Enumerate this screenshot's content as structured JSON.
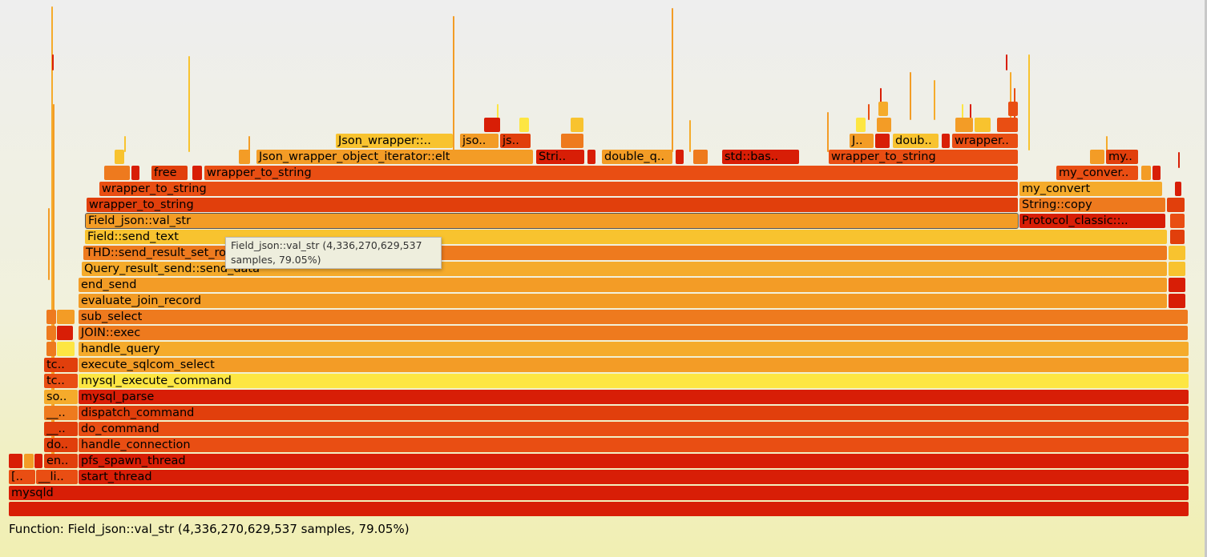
{
  "colors": [
    "#d81e06",
    "#e13f0c",
    "#e94e13",
    "#ee7a1e",
    "#f39c26",
    "#f5ab2b",
    "#f8c32f",
    "#fde642"
  ],
  "tooltip": {
    "line1": "Field_json::val_str (4,336,270,629,537",
    "line2": "samples, 79.05%)"
  },
  "details": {
    "text": "Function: Field_json::val_str (4,336,270,629,537 samples, 79.05%)"
  },
  "frames": [
    {
      "label": "",
      "color": "#d81e06",
      "name": "frame-root"
    },
    {
      "label": "mysqld",
      "color": "#d81e06",
      "name": "frame-mysqld"
    },
    {
      "label": "start_thread",
      "color": "#d81e06",
      "name": "frame-start-thread"
    },
    {
      "label": "[..",
      "color": "#e94e13",
      "name": "frame-unknown"
    },
    {
      "label": "__li..",
      "color": "#e94e13",
      "name": "frame-libc"
    },
    {
      "label": "pfs_spawn_thread",
      "color": "#d81e06",
      "name": "frame-pfs-spawn-thread"
    },
    {
      "label": "en..",
      "color": "#e13f0c",
      "name": "frame-en"
    },
    {
      "label": "",
      "color": "#d81e06",
      "name": "frame-small-a"
    },
    {
      "label": "",
      "color": "#f39c26",
      "name": "frame-small-b"
    },
    {
      "label": "",
      "color": "#d81e06",
      "name": "frame-small-c"
    },
    {
      "label": "handle_connection",
      "color": "#e94e13",
      "name": "frame-handle-connection"
    },
    {
      "label": "do..",
      "color": "#e13f0c",
      "name": "frame-do"
    },
    {
      "label": "do_command",
      "color": "#e94e13",
      "name": "frame-do-command"
    },
    {
      "label": "__..",
      "color": "#e13f0c",
      "name": "frame-underscore-a"
    },
    {
      "label": "dispatch_command",
      "color": "#e13f0c",
      "name": "frame-dispatch-command"
    },
    {
      "label": "__..",
      "color": "#ee7a1e",
      "name": "frame-underscore-b"
    },
    {
      "label": "mysql_parse",
      "color": "#d81e06",
      "name": "frame-mysql-parse"
    },
    {
      "label": "so..",
      "color": "#f5ab2b",
      "name": "frame-so"
    },
    {
      "label": "mysql_execute_command",
      "color": "#fde642",
      "name": "frame-mysql-execute-command"
    },
    {
      "label": "tc..",
      "color": "#e94e13",
      "name": "frame-tc-a"
    },
    {
      "label": "execute_sqlcom_select",
      "color": "#f39c26",
      "name": "frame-execute-sqlcom-select"
    },
    {
      "label": "tc..",
      "color": "#e13f0c",
      "name": "frame-tc-b"
    },
    {
      "label": "handle_query",
      "color": "#f5ab2b",
      "name": "frame-handle-query"
    },
    {
      "label": "",
      "color": "#ee7a1e",
      "name": "frame-small-d"
    },
    {
      "label": "",
      "color": "#fde642",
      "name": "frame-small-e"
    },
    {
      "label": "JOIN::exec",
      "color": "#ee7a1e",
      "name": "frame-join-exec"
    },
    {
      "label": "",
      "color": "#ee7a1e",
      "name": "frame-small-f"
    },
    {
      "label": "",
      "color": "#d81e06",
      "name": "frame-small-g"
    },
    {
      "label": "sub_select",
      "color": "#ee7a1e",
      "name": "frame-sub-select"
    },
    {
      "label": "",
      "color": "#ee7a1e",
      "name": "frame-small-h"
    },
    {
      "label": "",
      "color": "#f39c26",
      "name": "frame-small-i"
    },
    {
      "label": "evaluate_join_record",
      "color": "#f39c26",
      "name": "frame-evaluate-join-record"
    },
    {
      "label": "",
      "color": "#d81e06",
      "name": "frame-small-j"
    },
    {
      "label": "end_send",
      "color": "#f39c26",
      "name": "frame-end-send"
    },
    {
      "label": "",
      "color": "#d81e06",
      "name": "frame-small-k"
    },
    {
      "label": "Query_result_send::send_data",
      "color": "#f5ab2b",
      "name": "frame-query-result-send-data"
    },
    {
      "label": "",
      "color": "#f8c32f",
      "name": "frame-small-l"
    },
    {
      "label": "THD::send_result_set_row",
      "color": "#ee7a1e",
      "name": "frame-thd-send-result-set-row"
    },
    {
      "label": "",
      "color": "#f8c32f",
      "name": "frame-small-m"
    },
    {
      "label": "Field::send_text",
      "color": "#f8c32f",
      "name": "frame-field-send-text"
    },
    {
      "label": "",
      "color": "#e13f0c",
      "name": "frame-small-n"
    },
    {
      "label": "Field_json::val_str",
      "color": "#f39c26",
      "name": "frame-field-json-val-str"
    },
    {
      "label": "Protocol_classic::..",
      "color": "#d81e06",
      "name": "frame-protocol-classic"
    },
    {
      "label": "wrapper_to_string",
      "color": "#e13f0c",
      "name": "frame-wrapper-to-string-1"
    },
    {
      "label": "String::copy",
      "color": "#ee7a1e",
      "name": "frame-string-copy"
    },
    {
      "label": "wrapper_to_string",
      "color": "#e94e13",
      "name": "frame-wrapper-to-string-2"
    },
    {
      "label": "my_convert",
      "color": "#f5ab2b",
      "name": "frame-my-convert"
    },
    {
      "label": "free",
      "color": "#e13f0c",
      "name": "frame-free"
    },
    {
      "label": "wrapper_to_string",
      "color": "#e94e13",
      "name": "frame-wrapper-to-string-3"
    },
    {
      "label": "my_conver..",
      "color": "#e94e13",
      "name": "frame-my-conver"
    },
    {
      "label": "Json_wrapper_object_iterator::elt",
      "color": "#f39c26",
      "name": "frame-json-wrapper-object-iterator-elt"
    },
    {
      "label": "Stri..",
      "color": "#d81e06",
      "name": "frame-stri"
    },
    {
      "label": "double_q..",
      "color": "#f39c26",
      "name": "frame-double-q"
    },
    {
      "label": "std::bas..",
      "color": "#d81e06",
      "name": "frame-std-bas"
    },
    {
      "label": "wrapper_to_string",
      "color": "#e94e13",
      "name": "frame-wrapper-to-string-4"
    },
    {
      "label": "my..",
      "color": "#e13f0c",
      "name": "frame-my"
    },
    {
      "label": "Json_wrapper::..",
      "color": "#f8c32f",
      "name": "frame-json-wrapper"
    },
    {
      "label": "jso..",
      "color": "#f39c26",
      "name": "frame-jso"
    },
    {
      "label": "js..",
      "color": "#e13f0c",
      "name": "frame-js"
    },
    {
      "label": "J..",
      "color": "#f39c26",
      "name": "frame-j"
    },
    {
      "label": "doub..",
      "color": "#f8c32f",
      "name": "frame-doub"
    },
    {
      "label": "wrapper..",
      "color": "#e94e13",
      "name": "frame-wrapper-short"
    }
  ]
}
